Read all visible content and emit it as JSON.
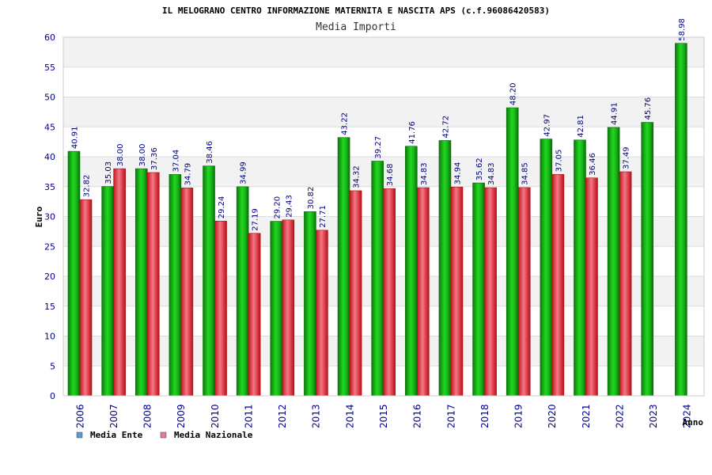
{
  "chart_data": {
    "type": "bar",
    "title": "IL MELOGRANO CENTRO INFORMAZIONE MATERNITA E NASCITA APS (c.f.96086420583)",
    "subtitle": "Media Importi",
    "xlabel": "Anno",
    "ylabel": "Euro",
    "ylim": [
      0,
      60
    ],
    "yticks": [
      "0",
      "5",
      "10",
      "15",
      "20",
      "25",
      "30",
      "35",
      "40",
      "45",
      "50",
      "55",
      "60"
    ],
    "categories": [
      "2006",
      "2007",
      "2008",
      "2009",
      "2010",
      "2011",
      "2012",
      "2013",
      "2014",
      "2015",
      "2016",
      "2017",
      "2018",
      "2019",
      "2020",
      "2021",
      "2022",
      "2023",
      "2024"
    ],
    "series": [
      {
        "name": "Media Ente",
        "legend_color": "#5b9bd5",
        "color": "#1fbf1f",
        "values": [
          40.91,
          35.03,
          38.0,
          37.04,
          38.46,
          34.99,
          29.2,
          30.82,
          43.22,
          39.27,
          41.76,
          42.72,
          35.62,
          48.2,
          42.97,
          42.81,
          44.91,
          45.76,
          58.98
        ],
        "labels": [
          "40.91",
          "35.03",
          "38.00",
          "37.04",
          "38.46",
          "34.99",
          "29.20",
          "30.82",
          "43.22",
          "39.27",
          "41.76",
          "42.72",
          "35.62",
          "48.20",
          "42.97",
          "42.81",
          "44.91",
          "45.76",
          "58.98"
        ]
      },
      {
        "name": "Media Nazionale",
        "legend_color": "#e377a8",
        "color": "#e0303a",
        "values": [
          32.82,
          38.0,
          37.36,
          34.79,
          29.24,
          27.19,
          29.43,
          27.71,
          34.32,
          34.68,
          34.83,
          34.94,
          34.83,
          34.85,
          37.05,
          36.46,
          37.49,
          null,
          null
        ],
        "labels": [
          "32.82",
          "38.00",
          "37.36",
          "34.79",
          "29.24",
          "27.19",
          "29.43",
          "27.71",
          "34.32",
          "34.68",
          "34.83",
          "34.94",
          "34.83",
          "34.85",
          "37.05",
          "36.46",
          "37.49",
          null,
          null
        ]
      }
    ],
    "grid": true,
    "legend_position": "bottom-left"
  }
}
